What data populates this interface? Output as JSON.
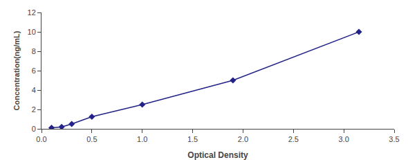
{
  "chart_data": {
    "type": "line",
    "x": [
      0.1,
      0.2,
      0.3,
      0.5,
      1.0,
      1.9,
      3.15
    ],
    "values": [
      0.1,
      0.2,
      0.5,
      1.25,
      2.5,
      5.0,
      10.0
    ],
    "color": "#222288",
    "marker": "diamond",
    "line_style": "solid",
    "xlabel": "Optical Density",
    "ylabel": "Concentration(ng/mL)",
    "xlim": [
      0,
      3.5
    ],
    "ylim": [
      0,
      12
    ],
    "xticks": [
      {
        "value": 0,
        "label": "0.0"
      },
      0.5,
      {
        "value": 1.0,
        "label": "1.0"
      },
      1.5,
      {
        "value": 2.0,
        "label": "2.0"
      },
      2.5,
      {
        "value": 3.0,
        "label": "3.0"
      },
      3.5
    ],
    "yticks": [
      0,
      2,
      4,
      6,
      8,
      10,
      12
    ],
    "grid": false
  }
}
